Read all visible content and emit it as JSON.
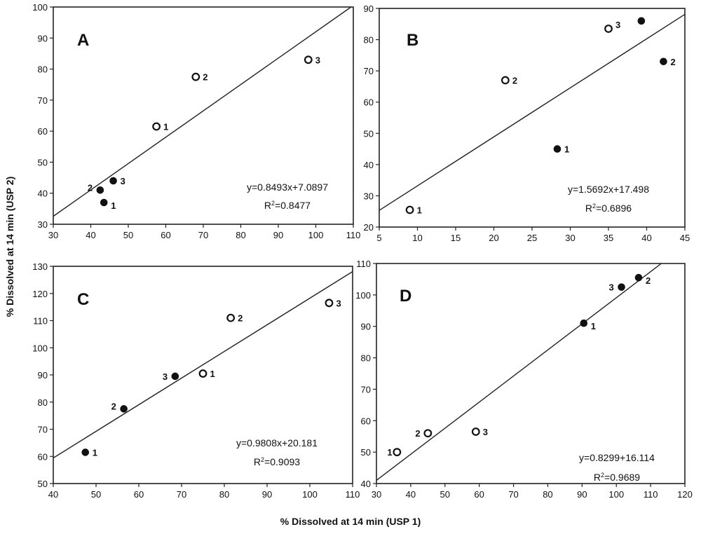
{
  "figure": {
    "y_axis_title": "% Dissolved at 14 min (USP 2)",
    "x_axis_title": "% Dissolved at 14 min (USP 1)"
  },
  "chart_data": [
    {
      "type": "scatter",
      "panel_label": "A",
      "xlim": [
        30,
        110
      ],
      "ylim": [
        30,
        100
      ],
      "xticks": [
        30,
        40,
        50,
        60,
        70,
        80,
        90,
        100,
        110
      ],
      "yticks": [
        30,
        40,
        50,
        60,
        70,
        80,
        90,
        100
      ],
      "points": [
        {
          "x": 57.5,
          "y": 61.5,
          "marker": "open",
          "label": "1"
        },
        {
          "x": 68,
          "y": 77.5,
          "marker": "open",
          "label": "2"
        },
        {
          "x": 98,
          "y": 83,
          "marker": "open",
          "label": "3"
        },
        {
          "x": 43.5,
          "y": 37,
          "marker": "filled",
          "label": "1"
        },
        {
          "x": 42.5,
          "y": 41,
          "marker": "filled",
          "label": "2"
        },
        {
          "x": 46,
          "y": 44,
          "marker": "filled",
          "label": "3"
        }
      ],
      "fit_line": {
        "slope": 0.8493,
        "intercept": 7.0897
      },
      "equation": "y=0.8493x+7.0897",
      "r2_prefix": "R",
      "r2_sup": "2",
      "r2_value": "=0.8477"
    },
    {
      "type": "scatter",
      "panel_label": "B",
      "xlim": [
        5,
        45
      ],
      "ylim": [
        20,
        90
      ],
      "xticks": [
        5,
        10,
        15,
        20,
        25,
        30,
        35,
        40,
        45
      ],
      "yticks": [
        20,
        30,
        40,
        50,
        60,
        70,
        80,
        90
      ],
      "points": [
        {
          "x": 9,
          "y": 25.5,
          "marker": "open",
          "label": "1"
        },
        {
          "x": 21.5,
          "y": 67,
          "marker": "open",
          "label": "2"
        },
        {
          "x": 35,
          "y": 83.5,
          "marker": "open",
          "label": "3"
        },
        {
          "x": 28.3,
          "y": 45,
          "marker": "filled",
          "label": "1"
        },
        {
          "x": 42.2,
          "y": 73,
          "marker": "filled",
          "label": "2"
        },
        {
          "x": 39.3,
          "y": 86,
          "marker": "filled",
          "label": ""
        }
      ],
      "fit_line": {
        "slope": 1.5692,
        "intercept": 17.498
      },
      "equation": "y=1.5692x+17.498",
      "r2_prefix": "R",
      "r2_sup": "2",
      "r2_value": "=0.6896"
    },
    {
      "type": "scatter",
      "panel_label": "C",
      "xlim": [
        40,
        110
      ],
      "ylim": [
        50,
        130
      ],
      "xticks": [
        40,
        50,
        60,
        70,
        80,
        90,
        100,
        110
      ],
      "yticks": [
        50,
        60,
        70,
        80,
        90,
        100,
        110,
        120,
        130
      ],
      "points": [
        {
          "x": 75,
          "y": 90.5,
          "marker": "open",
          "label": "1"
        },
        {
          "x": 81.5,
          "y": 111,
          "marker": "open",
          "label": "2"
        },
        {
          "x": 104.5,
          "y": 116.5,
          "marker": "open",
          "label": "3"
        },
        {
          "x": 47.5,
          "y": 61.5,
          "marker": "filled",
          "label": "1"
        },
        {
          "x": 56.5,
          "y": 77.5,
          "marker": "filled",
          "label": "2"
        },
        {
          "x": 68.5,
          "y": 89.5,
          "marker": "filled",
          "label": "3"
        }
      ],
      "fit_line": {
        "slope": 0.9808,
        "intercept": 20.181
      },
      "equation": "y=0.9808x+20.181",
      "r2_prefix": "R",
      "r2_sup": "2",
      "r2_value": "=0.9093"
    },
    {
      "type": "scatter",
      "panel_label": "D",
      "xlim": [
        30,
        120
      ],
      "ylim": [
        40,
        110
      ],
      "xticks": [
        30,
        40,
        50,
        60,
        70,
        80,
        90,
        100,
        110,
        120
      ],
      "yticks": [
        40,
        50,
        60,
        70,
        80,
        90,
        100,
        110
      ],
      "points": [
        {
          "x": 36,
          "y": 50,
          "marker": "open",
          "label": "1"
        },
        {
          "x": 45,
          "y": 56,
          "marker": "open",
          "label": "2"
        },
        {
          "x": 59,
          "y": 56.5,
          "marker": "open",
          "label": "3"
        },
        {
          "x": 90.5,
          "y": 91,
          "marker": "filled",
          "label": "1"
        },
        {
          "x": 106.5,
          "y": 105.5,
          "marker": "filled",
          "label": "2"
        },
        {
          "x": 101.5,
          "y": 102.5,
          "marker": "filled",
          "label": "3"
        }
      ],
      "fit_line": {
        "slope": 0.8299,
        "intercept": 16.114
      },
      "equation": "y=0.8299+16.114",
      "r2_prefix": "R",
      "r2_sup": "2",
      "r2_value": "=0.9689"
    }
  ]
}
